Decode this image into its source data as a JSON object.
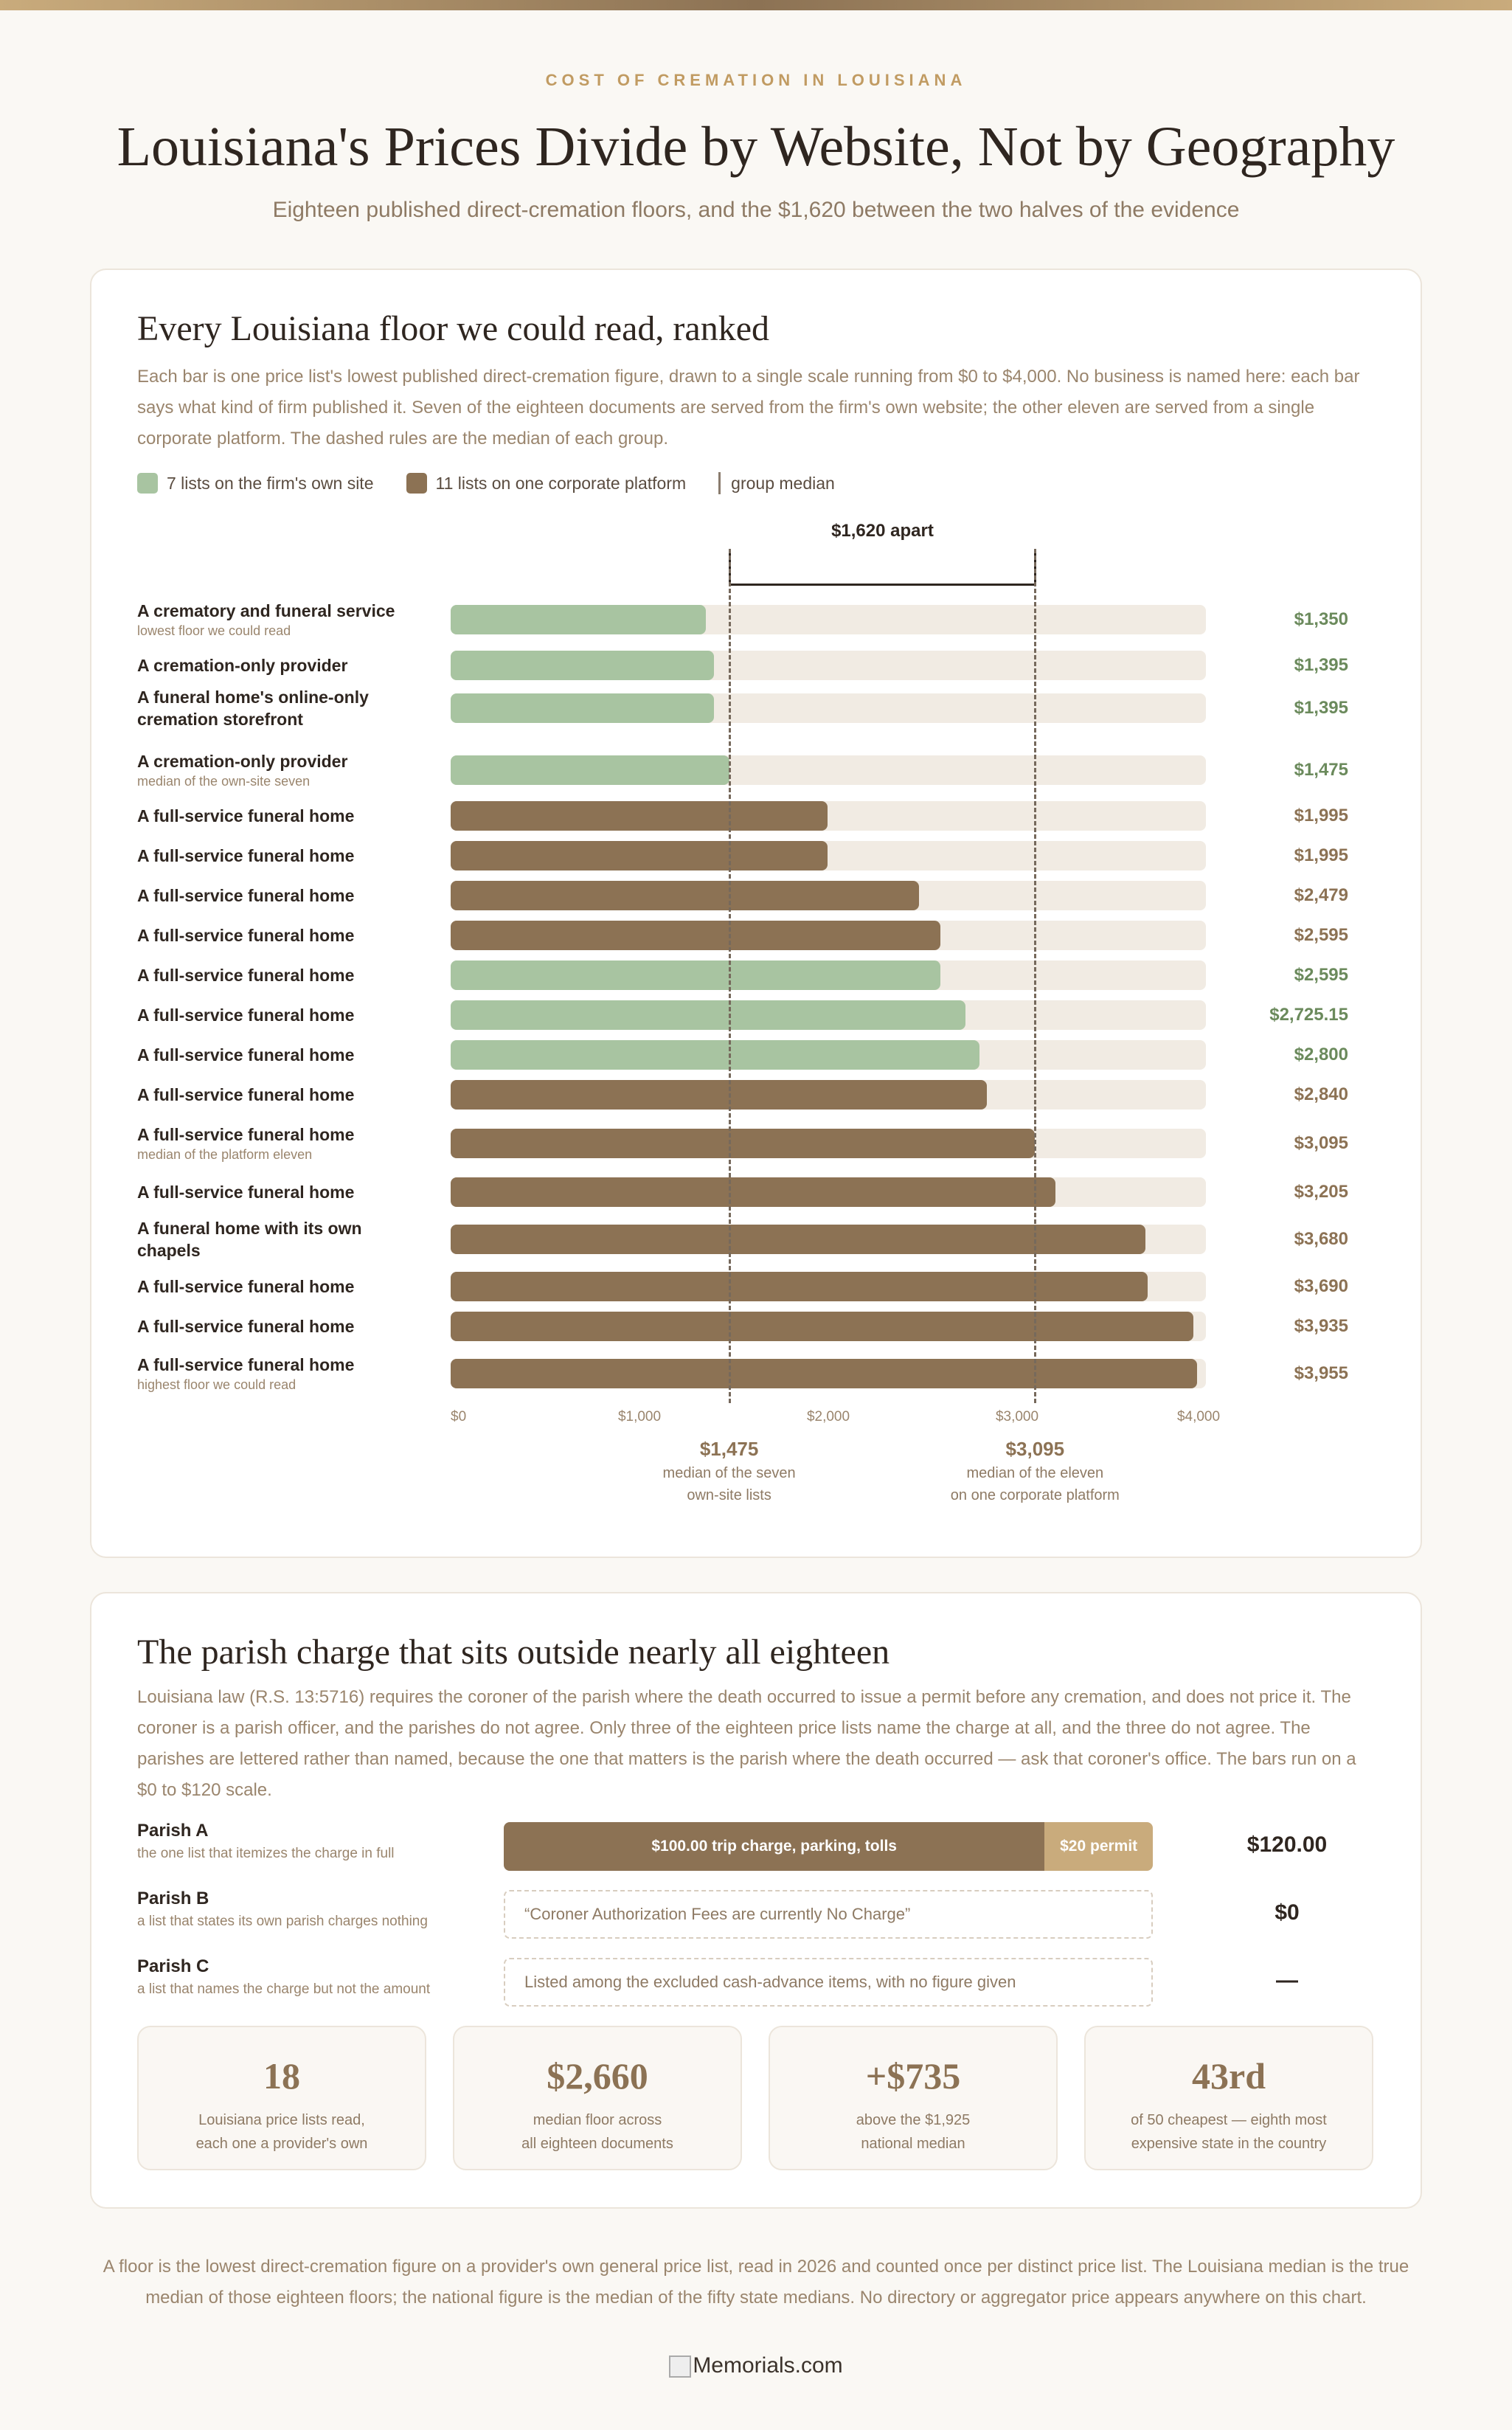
{
  "header": {
    "eyebrow": "COST OF CREMATION IN LOUISIANA",
    "title": "Louisiana's Prices Divide by Website, Not by Geography",
    "subtitle": "Eighteen published direct-cremation floors, and the $1,620 between the two halves of the evidence"
  },
  "ranked": {
    "heading": "Every Louisiana floor we could read, ranked",
    "description": "Each bar is one price list's lowest published direct-cremation figure, drawn to a single scale running from $0 to $4,000. No business is named here: each bar says what kind of firm published it. Seven of the eighteen documents are served from the firm's own website; the other eleven are served from a single corporate platform. The dashed rules are the median of each group.",
    "legend": {
      "own": "7 lists on the firm's own site",
      "corp": "11 lists on one corporate platform",
      "median": "group median"
    },
    "gap_label": "$1,620 apart",
    "median_own": {
      "value": "$1,475",
      "note_line1": "median of the seven",
      "note_line2": "own-site lists"
    },
    "median_corp": {
      "value": "$3,095",
      "note_line1": "median of the eleven",
      "note_line2": "on one corporate platform"
    }
  },
  "chart_data": {
    "type": "bar",
    "orientation": "horizontal",
    "xlim": [
      0,
      4000
    ],
    "xticks": [
      "$0",
      "$1,000",
      "$2,000",
      "$3,000",
      "$4,000"
    ],
    "medians": {
      "own": 1475,
      "corp": 3095
    },
    "colors": {
      "own": "#a8c4a1",
      "corp": "#8c7254",
      "track": "#f1ebe3"
    },
    "rows": [
      {
        "label": "A crematory and funeral service",
        "note": "lowest floor we could read",
        "value": 1350,
        "display": "$1,350",
        "group": "own"
      },
      {
        "label": "A cremation-only provider",
        "note": "",
        "value": 1395,
        "display": "$1,395",
        "group": "own"
      },
      {
        "label": "A funeral home's online-only cremation storefront",
        "note": "",
        "value": 1395,
        "display": "$1,395",
        "group": "own"
      },
      {
        "label": "A cremation-only provider",
        "note": "median of the own-site seven",
        "value": 1475,
        "display": "$1,475",
        "group": "own"
      },
      {
        "label": "A full-service funeral home",
        "note": "",
        "value": 1995,
        "display": "$1,995",
        "group": "corp"
      },
      {
        "label": "A full-service funeral home",
        "note": "",
        "value": 1995,
        "display": "$1,995",
        "group": "corp"
      },
      {
        "label": "A full-service funeral home",
        "note": "",
        "value": 2479,
        "display": "$2,479",
        "group": "corp"
      },
      {
        "label": "A full-service funeral home",
        "note": "",
        "value": 2595,
        "display": "$2,595",
        "group": "corp"
      },
      {
        "label": "A full-service funeral home",
        "note": "",
        "value": 2595,
        "display": "$2,595",
        "group": "own"
      },
      {
        "label": "A full-service funeral home",
        "note": "",
        "value": 2725.15,
        "display": "$2,725.15",
        "group": "own"
      },
      {
        "label": "A full-service funeral home",
        "note": "",
        "value": 2800,
        "display": "$2,800",
        "group": "own"
      },
      {
        "label": "A full-service funeral home",
        "note": "",
        "value": 2840,
        "display": "$2,840",
        "group": "corp"
      },
      {
        "label": "A full-service funeral home",
        "note": "median of the platform eleven",
        "value": 3095,
        "display": "$3,095",
        "group": "corp"
      },
      {
        "label": "A full-service funeral home",
        "note": "",
        "value": 3205,
        "display": "$3,205",
        "group": "corp"
      },
      {
        "label": "A funeral home with its own chapels",
        "note": "",
        "value": 3680,
        "display": "$3,680",
        "group": "corp"
      },
      {
        "label": "A full-service funeral home",
        "note": "",
        "value": 3690,
        "display": "$3,690",
        "group": "corp"
      },
      {
        "label": "A full-service funeral home",
        "note": "",
        "value": 3935,
        "display": "$3,935",
        "group": "corp"
      },
      {
        "label": "A full-service funeral home",
        "note": "highest floor we could read",
        "value": 3955,
        "display": "$3,955",
        "group": "corp"
      }
    ]
  },
  "parish": {
    "heading": "The parish charge that sits outside nearly all eighteen",
    "description": "Louisiana law (R.S. 13:5716) requires the coroner of the parish where the death occurred to issue a permit before any cremation, and does not price it. The coroner is a parish officer, and the parishes do not agree. Only three of the eighteen price lists name the charge at all, and the three do not agree. The parishes are lettered rather than named, because the one that matters is the parish where the death occurred — ask that coroner's office. The bars run on a $0 to $120 scale.",
    "scale_max": 120,
    "a": {
      "name": "Parish A",
      "note": "the one list that itemizes the charge in full",
      "seg1_label": "$100.00 trip charge, parking, tolls",
      "seg1_value": 100,
      "seg2_label": "$20 permit",
      "seg2_value": 20,
      "total": "$120.00"
    },
    "b": {
      "name": "Parish B",
      "note": "a list that states its own parish charges nothing",
      "text": "“Coroner Authorization Fees are currently No Charge”",
      "value": "$0"
    },
    "c": {
      "name": "Parish C",
      "note": "a list that names the charge but not the amount",
      "text": "Listed among the excluded cash-advance items, with no figure given",
      "value": "—"
    }
  },
  "stats": [
    {
      "big": "18",
      "line1": "Louisiana price lists read,",
      "line2": "each one a provider's own"
    },
    {
      "big": "$2,660",
      "line1": "median floor across",
      "line2": "all eighteen documents"
    },
    {
      "big": "+$735",
      "line1": "above the $1,925",
      "line2": "national median"
    },
    {
      "big": "43rd",
      "line1": "of 50 cheapest — eighth most",
      "line2": "expensive state in the country"
    }
  ],
  "footnote": "A floor is the lowest direct-cremation figure on a provider's own general price list, read in 2026 and counted once per distinct price list. The Louisiana median is the true median of those eighteen floors; the national figure is the median of the fifty state medians. No directory or aggregator price appears anywhere on this chart.",
  "brand": "Memorials.com"
}
